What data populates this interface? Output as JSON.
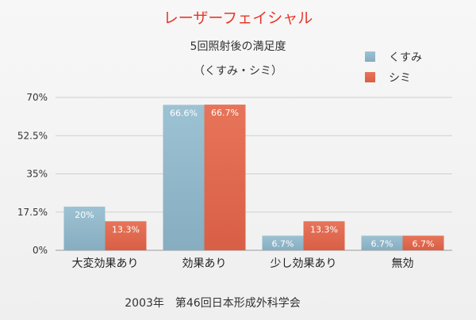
{
  "chart_data": {
    "type": "bar",
    "title": "レーザーフェイシャル",
    "subtitle_lines": [
      "5回照射後の満足度",
      "（くすみ・シミ）"
    ],
    "categories": [
      "大変効果あり",
      "効果あり",
      "少し効果あり",
      "無効"
    ],
    "series": [
      {
        "name": "くすみ",
        "values": [
          20,
          66.6,
          6.7,
          6.7
        ],
        "labels": [
          "20%",
          "66.6%",
          "6.7%",
          "6.7%"
        ],
        "color": "#8fb6c8"
      },
      {
        "name": "シミ",
        "values": [
          13.3,
          66.7,
          13.3,
          6.7
        ],
        "labels": [
          "13.3%",
          "66.7%",
          "13.3%",
          "6.7%"
        ],
        "color": "#e06a4e"
      }
    ],
    "yticks": [
      0,
      17.5,
      35,
      52.5,
      70
    ],
    "ytick_labels": [
      "0%",
      "17.5%",
      "35%",
      "52.5%",
      "70%"
    ],
    "ylim": [
      0,
      70
    ],
    "grid": true,
    "legend_position": "top-right",
    "source": "2003年　第46回日本形成外科学会"
  }
}
